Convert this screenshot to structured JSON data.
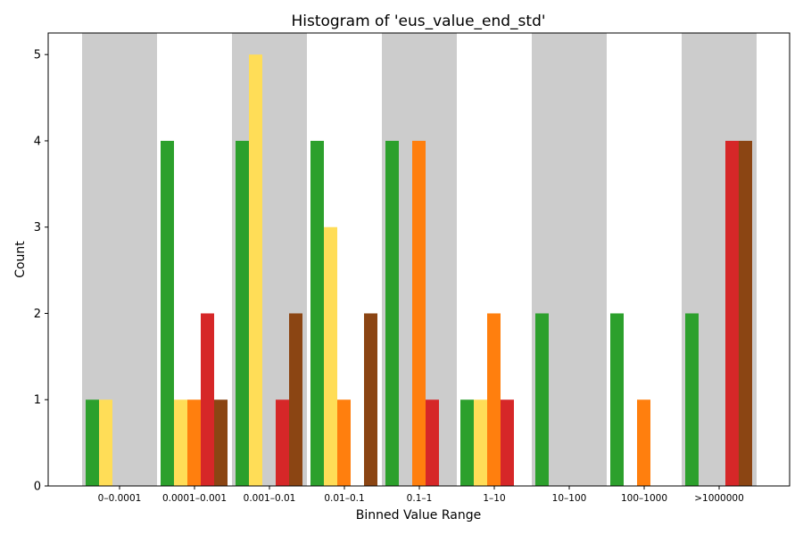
{
  "chart_data": {
    "type": "bar",
    "title": "Histogram of 'eus_value_end_std'",
    "xlabel": "Binned Value Range",
    "ylabel": "Count",
    "ylim": [
      0,
      5.25
    ],
    "yticks": [
      0,
      1,
      2,
      3,
      4,
      5
    ],
    "grid": false,
    "legend": "none",
    "categories": [
      "0–0.0001",
      "0.0001–0.001",
      "0.001–0.01",
      "0.01–0.1",
      "0.1–1",
      "1–10",
      "10–100",
      "100–1000",
      ">1000000"
    ],
    "shaded_bands": [
      0,
      2,
      4,
      6,
      8
    ],
    "band_color": "#cccccc",
    "series": [
      {
        "color": "#2ca02c",
        "values": [
          1,
          4,
          4,
          4,
          4,
          1,
          2,
          2,
          2
        ]
      },
      {
        "color": "#ffdd57",
        "values": [
          1,
          1,
          5,
          3,
          0,
          1,
          0,
          0,
          0
        ]
      },
      {
        "color": "#ff7f0e",
        "values": [
          0,
          1,
          0,
          1,
          4,
          2,
          0,
          1,
          0
        ]
      },
      {
        "color": "#d62728",
        "values": [
          0,
          2,
          1,
          0,
          1,
          1,
          0,
          0,
          4
        ]
      },
      {
        "color": "#8b4513",
        "values": [
          0,
          1,
          2,
          2,
          0,
          0,
          0,
          0,
          4
        ]
      }
    ]
  }
}
